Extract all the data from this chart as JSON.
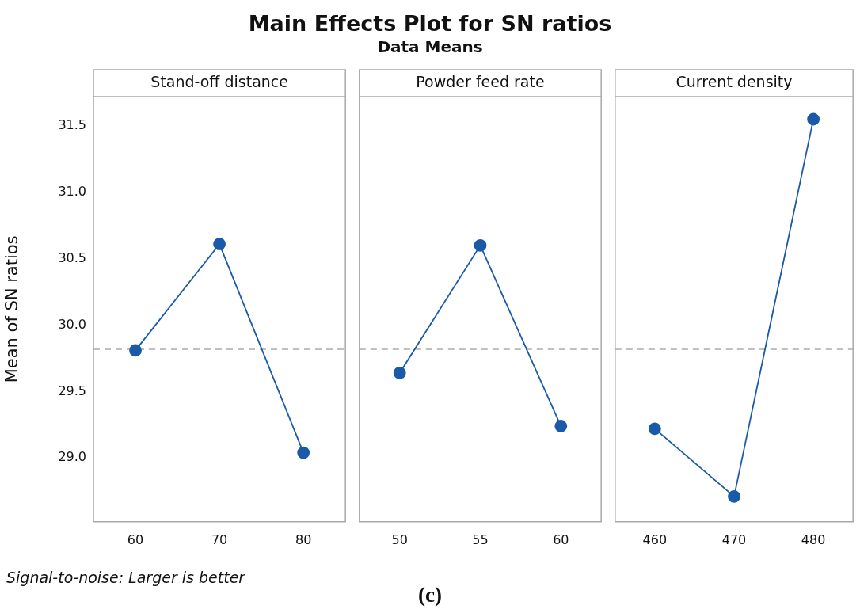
{
  "chart_data": [
    {
      "type": "other",
      "title": "Main Effects Plot for SN ratios",
      "subtitle": "Data Means"
    },
    {
      "type": "line",
      "title": "Stand-off distance",
      "ylabel": "Mean of SN ratios",
      "categories": [
        "60",
        "70",
        "80"
      ],
      "values": [
        29.81,
        30.61,
        29.04
      ],
      "color": "#1a5aa8",
      "marker": "circle",
      "ylim": [
        28.52,
        31.72
      ],
      "yticks": [
        {
          "value": 29,
          "label": "29.0"
        },
        29.5,
        {
          "value": 30,
          "label": "30.0"
        },
        30.5,
        {
          "value": 31,
          "label": "31.0"
        },
        31.5
      ],
      "ref_lines": [
        {
          "axis": "y",
          "value": 29.82,
          "color": "#c0c0c0",
          "line_style": "dashed"
        }
      ],
      "grid": false,
      "legend": false
    },
    {
      "type": "line",
      "title": "Powder feed rate",
      "categories": [
        "50",
        "55",
        "60"
      ],
      "values": [
        29.64,
        30.6,
        29.24
      ],
      "color": "#1a5aa8",
      "marker": "circle",
      "ylim": [
        28.52,
        31.72
      ],
      "ref_lines": [
        {
          "axis": "y",
          "value": 29.82,
          "color": "#c0c0c0",
          "line_style": "dashed"
        }
      ],
      "grid": false,
      "legend": false,
      "tick_labels": "x"
    },
    {
      "type": "line",
      "title": "Current density",
      "categories": [
        "460",
        "470",
        "480"
      ],
      "values": [
        29.22,
        28.71,
        31.55
      ],
      "color": "#1a5aa8",
      "marker": "circle",
      "ylim": [
        28.52,
        31.72
      ],
      "ref_lines": [
        {
          "axis": "y",
          "value": 29.82,
          "color": "#c0c0c0",
          "line_style": "dashed"
        }
      ],
      "grid": false,
      "legend": false,
      "tick_labels": "x"
    },
    {
      "type": "other",
      "annotations": [
        "Signal-to-noise: Larger is better",
        "(c)"
      ]
    }
  ]
}
